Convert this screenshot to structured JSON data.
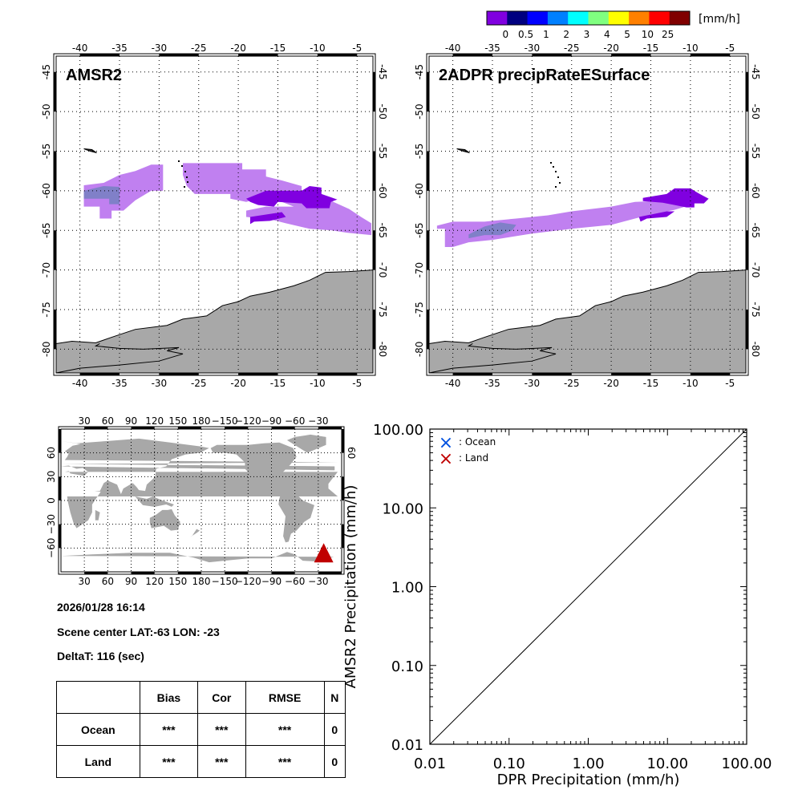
{
  "colorbar": {
    "colors": [
      "#8000e0",
      "#000080",
      "#0000ff",
      "#0080ff",
      "#00ffff",
      "#80ff80",
      "#ffff00",
      "#ff8000",
      "#ff0000",
      "#800000"
    ],
    "labels": [
      "0",
      "0.5",
      "1",
      "2",
      "3",
      "4",
      "5",
      "10",
      "25"
    ],
    "unit": "[mm/h]"
  },
  "regional_maps": {
    "lon_ticks": [
      "-40",
      "-35",
      "-30",
      "-25",
      "-20",
      "-15",
      "-10",
      "-5"
    ],
    "lat_ticks": [
      "-45",
      "-50",
      "-55",
      "-60",
      "-65",
      "-70",
      "-75",
      "-80"
    ],
    "lon_range": [
      -43,
      -3
    ],
    "lat_range": [
      -43,
      -83
    ],
    "land_color": "#a8a8a8",
    "panels": [
      {
        "title": "AMSR2"
      },
      {
        "title": "2ADPR precipRateESurface"
      }
    ]
  },
  "rain_colors": {
    "light": "#c080f0",
    "bluish": "#8080c8",
    "heavy": "#8000e0"
  },
  "world_map": {
    "lon_ticks": [
      "30",
      "60",
      "90",
      "120",
      "150",
      "180",
      "−150",
      "−120",
      "−90",
      "−60",
      "−30"
    ],
    "lat_ticks": [
      "60",
      "30",
      "0",
      "−30",
      "−60"
    ],
    "right_lat_tick": "60",
    "marker_color": "#c00000",
    "marker": "scene-location-triangle"
  },
  "info": {
    "datetime": "2026/01/28 16:14",
    "scene_center": "Scene center LAT:-63   LON: -23",
    "delta_t": "DeltaT:  116 (sec)"
  },
  "stats_table": {
    "headers": [
      "",
      "Bias",
      "Cor",
      "RMSE",
      "N"
    ],
    "rows": [
      [
        "Ocean",
        "***",
        "***",
        "***",
        "0"
      ],
      [
        "Land",
        "***",
        "***",
        "***",
        "0"
      ]
    ]
  },
  "chart_data": {
    "type": "scatter",
    "title": "",
    "xlabel": "DPR Precipitation (mm/h)",
    "ylabel": "AMSR2 Precipitation (mm/h)",
    "xscale": "log",
    "yscale": "log",
    "xlim": [
      0.01,
      100
    ],
    "ylim": [
      0.01,
      100
    ],
    "x_tick_labels": [
      "0.01",
      "0.10",
      "1.00",
      "10.00",
      "100.00"
    ],
    "y_tick_labels": [
      "0.01",
      "0.10",
      "1.00",
      "10.00",
      "100.00"
    ],
    "reference_line": "1:1 diagonal",
    "legend": [
      {
        "symbol": "×",
        "label": ": Ocean",
        "color": "#0050e0"
      },
      {
        "symbol": "×",
        "label": ": Land",
        "color": "#c00000"
      }
    ],
    "legend_position": "top-left",
    "series": [
      {
        "name": "Ocean",
        "points": []
      },
      {
        "name": "Land",
        "points": []
      }
    ]
  }
}
